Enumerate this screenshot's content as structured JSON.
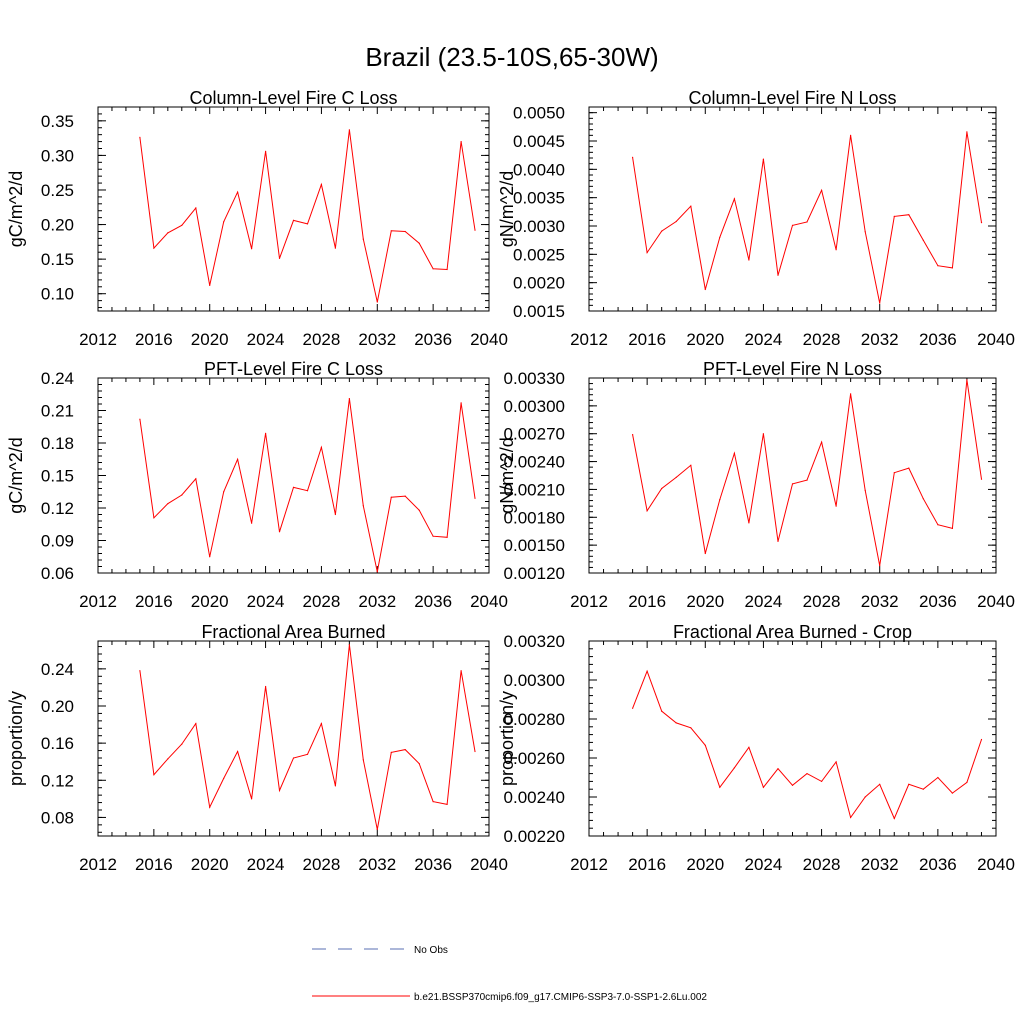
{
  "figure": {
    "title": "Brazil (23.5-10S,65-30W)"
  },
  "colors": {
    "series": "#ff0000",
    "obs": "#5a6fb3",
    "axis": "#000000"
  },
  "legend": {
    "obs_label": "No Obs",
    "model_label": "b.e21.BSSP370cmip6.f09_g17.CMIP6-SSP3-7.0-SSP1-2.6Lu.002"
  },
  "chart_data": [
    {
      "type": "line",
      "title": "Column-Level Fire C Loss",
      "ylabel": "gC/m^2/d",
      "xlim": [
        2012,
        2040
      ],
      "ylim": [
        0.075,
        0.37
      ],
      "xticks": [
        "2012",
        "2016",
        "2020",
        "2024",
        "2028",
        "2032",
        "2036",
        "2040"
      ],
      "yticks": [
        "0.10",
        "0.15",
        "0.20",
        "0.25",
        "0.30",
        "0.35"
      ],
      "x": [
        2015,
        2016,
        2017,
        2018,
        2019,
        2020,
        2021,
        2022,
        2023,
        2024,
        2025,
        2026,
        2027,
        2028,
        2029,
        2030,
        2031,
        2032,
        2033,
        2034,
        2035,
        2036,
        2037,
        2038,
        2039
      ],
      "series": [
        {
          "name": "b.e21.BSSP370cmip6.f09_g17.CMIP6-SSP3-7.0-SSP1-2.6Lu.002",
          "values": [
            0.326,
            0.166,
            0.188,
            0.199,
            0.224,
            0.112,
            0.204,
            0.247,
            0.165,
            0.306,
            0.151,
            0.206,
            0.201,
            0.258,
            0.166,
            0.337,
            0.179,
            0.088,
            0.191,
            0.19,
            0.173,
            0.136,
            0.135,
            0.32,
            0.192
          ]
        }
      ]
    },
    {
      "type": "line",
      "title": "Column-Level Fire N Loss",
      "ylabel": "gN/m^2/d",
      "xlim": [
        2012,
        2040
      ],
      "ylim": [
        0.0015,
        0.0051
      ],
      "xticks": [
        "2012",
        "2016",
        "2020",
        "2024",
        "2028",
        "2032",
        "2036",
        "2040"
      ],
      "yticks": [
        "0.0015",
        "0.0020",
        "0.0025",
        "0.0030",
        "0.0035",
        "0.0040",
        "0.0045",
        "0.0050"
      ],
      "x": [
        2015,
        2016,
        2017,
        2018,
        2019,
        2020,
        2021,
        2022,
        2023,
        2024,
        2025,
        2026,
        2027,
        2028,
        2029,
        2030,
        2031,
        2032,
        2033,
        2034,
        2035,
        2036,
        2037,
        2038,
        2039
      ],
      "series": [
        {
          "name": "b.e21.BSSP370cmip6.f09_g17.CMIP6-SSP3-7.0-SSP1-2.6Lu.002",
          "values": [
            0.00421,
            0.00253,
            0.00291,
            0.00308,
            0.00335,
            0.00188,
            0.0028,
            0.00348,
            0.0024,
            0.00418,
            0.00213,
            0.00301,
            0.00307,
            0.00363,
            0.00258,
            0.0046,
            0.0029,
            0.00164,
            0.00317,
            0.0032,
            0.00275,
            0.0023,
            0.00226,
            0.00466,
            0.00306
          ]
        }
      ]
    },
    {
      "type": "line",
      "title": "PFT-Level Fire C Loss",
      "ylabel": "gC/m^2/d",
      "xlim": [
        2012,
        2040
      ],
      "ylim": [
        0.06,
        0.24
      ],
      "xticks": [
        "2012",
        "2016",
        "2020",
        "2024",
        "2028",
        "2032",
        "2036",
        "2040"
      ],
      "yticks": [
        "0.06",
        "0.09",
        "0.12",
        "0.15",
        "0.18",
        "0.21",
        "0.24"
      ],
      "x": [
        2015,
        2016,
        2017,
        2018,
        2019,
        2020,
        2021,
        2022,
        2023,
        2024,
        2025,
        2026,
        2027,
        2028,
        2029,
        2030,
        2031,
        2032,
        2033,
        2034,
        2035,
        2036,
        2037,
        2038,
        2039
      ],
      "series": [
        {
          "name": "b.e21.BSSP370cmip6.f09_g17.CMIP6-SSP3-7.0-SSP1-2.6Lu.002",
          "values": [
            0.202,
            0.111,
            0.124,
            0.132,
            0.147,
            0.075,
            0.135,
            0.165,
            0.106,
            0.189,
            0.098,
            0.139,
            0.136,
            0.176,
            0.114,
            0.221,
            0.122,
            0.061,
            0.13,
            0.131,
            0.118,
            0.094,
            0.093,
            0.217,
            0.129
          ]
        }
      ]
    },
    {
      "type": "line",
      "title": "PFT-Level Fire N Loss",
      "ylabel": "gN/m^2/d",
      "xlim": [
        2012,
        2040
      ],
      "ylim": [
        0.0012,
        0.0033
      ],
      "xticks": [
        "2012",
        "2016",
        "2020",
        "2024",
        "2028",
        "2032",
        "2036",
        "2040"
      ],
      "yticks": [
        "0.00120",
        "0.00150",
        "0.00180",
        "0.00210",
        "0.00240",
        "0.00270",
        "0.00300",
        "0.00330"
      ],
      "x": [
        2015,
        2016,
        2017,
        2018,
        2019,
        2020,
        2021,
        2022,
        2023,
        2024,
        2025,
        2026,
        2027,
        2028,
        2029,
        2030,
        2031,
        2032,
        2033,
        2034,
        2035,
        2036,
        2037,
        2038,
        2039
      ],
      "series": [
        {
          "name": "b.e21.BSSP370cmip6.f09_g17.CMIP6-SSP3-7.0-SSP1-2.6Lu.002",
          "values": [
            0.00269,
            0.00187,
            0.00211,
            0.00223,
            0.00236,
            0.00141,
            0.00199,
            0.00249,
            0.00174,
            0.0027,
            0.00154,
            0.00216,
            0.0022,
            0.00261,
            0.00192,
            0.00313,
            0.00209,
            0.00128,
            0.00228,
            0.00233,
            0.002,
            0.00172,
            0.00168,
            0.00328,
            0.00221
          ]
        }
      ]
    },
    {
      "type": "line",
      "title": "Fractional Area Burned",
      "ylabel": "proportion/y",
      "xlim": [
        2012,
        2040
      ],
      "ylim": [
        0.06,
        0.27
      ],
      "xticks": [
        "2012",
        "2016",
        "2020",
        "2024",
        "2028",
        "2032",
        "2036",
        "2040"
      ],
      "yticks": [
        "0.08",
        "0.12",
        "0.16",
        "0.20",
        "0.24"
      ],
      "x": [
        2015,
        2016,
        2017,
        2018,
        2019,
        2020,
        2021,
        2022,
        2023,
        2024,
        2025,
        2026,
        2027,
        2028,
        2029,
        2030,
        2031,
        2032,
        2033,
        2034,
        2035,
        2036,
        2037,
        2038,
        2039
      ],
      "series": [
        {
          "name": "b.e21.BSSP370cmip6.f09_g17.CMIP6-SSP3-7.0-SSP1-2.6Lu.002",
          "values": [
            0.238,
            0.126,
            0.143,
            0.159,
            0.181,
            0.091,
            0.122,
            0.151,
            0.1,
            0.221,
            0.109,
            0.144,
            0.148,
            0.181,
            0.114,
            0.266,
            0.142,
            0.067,
            0.15,
            0.153,
            0.138,
            0.097,
            0.094,
            0.238,
            0.151
          ]
        }
      ]
    },
    {
      "type": "line",
      "title": "Fractional Area Burned - Crop",
      "ylabel": "proportion/y",
      "xlim": [
        2012,
        2040
      ],
      "ylim": [
        0.0022,
        0.0032
      ],
      "xticks": [
        "2012",
        "2016",
        "2020",
        "2024",
        "2028",
        "2032",
        "2036",
        "2040"
      ],
      "yticks": [
        "0.00220",
        "0.00240",
        "0.00260",
        "0.00280",
        "0.00300",
        "0.00320"
      ],
      "x": [
        2015,
        2016,
        2017,
        2018,
        2019,
        2020,
        2021,
        2022,
        2023,
        2024,
        2025,
        2026,
        2027,
        2028,
        2029,
        2030,
        2031,
        2032,
        2033,
        2034,
        2035,
        2036,
        2037,
        2038,
        2039
      ],
      "series": [
        {
          "name": "b.e21.BSSP370cmip6.f09_g17.CMIP6-SSP3-7.0-SSP1-2.6Lu.002",
          "values": [
            0.002855,
            0.003045,
            0.00284,
            0.00278,
            0.002755,
            0.002665,
            0.00245,
            0.00255,
            0.002655,
            0.00245,
            0.002545,
            0.00246,
            0.00252,
            0.00248,
            0.00258,
            0.002295,
            0.0024,
            0.002465,
            0.00229,
            0.002465,
            0.00244,
            0.0025,
            0.00242,
            0.002475,
            0.002695
          ]
        }
      ]
    }
  ]
}
